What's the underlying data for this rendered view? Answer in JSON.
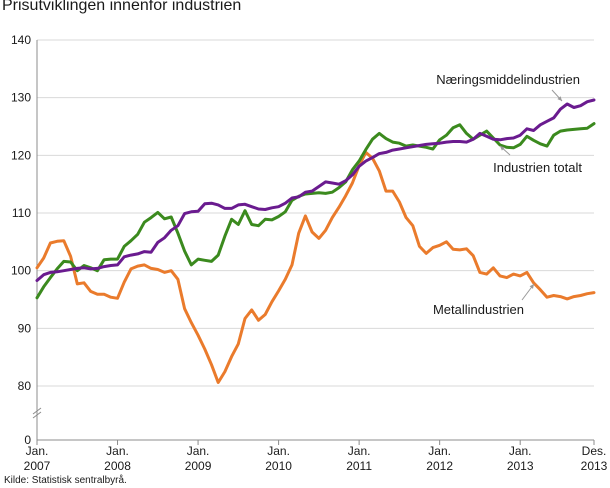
{
  "title": "Prisutviklingen innenfor industrien",
  "source": "Kilde: Statistisk sentralbyrå.",
  "colors": {
    "industrien_totalt": "#3b8a1e",
    "naeringsmiddel": "#6a1b8f",
    "metall": "#ea7b2c",
    "grid": "#d9d9d9",
    "axis": "#8c8c8c"
  },
  "chart_data": {
    "type": "line",
    "title": "Prisutviklingen innenfor industrien",
    "xlabel": "",
    "ylabel": "",
    "ylim": [
      0,
      140
    ],
    "y_axis_break": [
      0,
      80
    ],
    "yticks": [
      0,
      80,
      90,
      100,
      110,
      120,
      130,
      140
    ],
    "x_range": [
      0,
      83
    ],
    "x_ticks": [
      {
        "x": 0,
        "line1": "Jan.",
        "line2": "2007"
      },
      {
        "x": 12,
        "line1": "Jan.",
        "line2": "2008"
      },
      {
        "x": 24,
        "line1": "Jan.",
        "line2": "2009"
      },
      {
        "x": 36,
        "line1": "Jan.",
        "line2": "2010"
      },
      {
        "x": 48,
        "line1": "Jan.",
        "line2": "2011"
      },
      {
        "x": 60,
        "line1": "Jan.",
        "line2": "2012"
      },
      {
        "x": 72,
        "line1": "Jan.",
        "line2": "2013"
      },
      {
        "x": 83,
        "line1": "Des.",
        "line2": "2013"
      }
    ],
    "series": [
      {
        "name": "Industrien totalt",
        "color_key": "industrien_totalt",
        "values": [
          95.3,
          97.2,
          98.8,
          100.3,
          101.6,
          101.5,
          100,
          100.9,
          100.5,
          100,
          101.9,
          102,
          102,
          104.2,
          105.2,
          106.3,
          108.4,
          109.2,
          110.1,
          109,
          109.3,
          106.5,
          103.4,
          101,
          102,
          101.8,
          101.6,
          102.7,
          106,
          108.9,
          108,
          110.4,
          108,
          107.8,
          108.9,
          108.8,
          109.4,
          110.2,
          112.2,
          112.9,
          113.3,
          113.4,
          113.5,
          113.4,
          113.6,
          114.4,
          115.4,
          117.5,
          119,
          121,
          122.8,
          123.8,
          122.9,
          122.3,
          122.1,
          121.6,
          121.8,
          121.6,
          121.4,
          121.1,
          122.7,
          123.5,
          124.8,
          125.3,
          123.8,
          122.8,
          123.5,
          124.2,
          123,
          121.8,
          121.4,
          121.3,
          121.9,
          123.3,
          122.6,
          122,
          121.6,
          123.5,
          124.2,
          124.4,
          124.5,
          124.6,
          124.7,
          125.5
        ]
      },
      {
        "name": "Næringsmiddelindustrien",
        "color_key": "naeringsmiddel",
        "values": [
          98.3,
          99.3,
          99.7,
          99.8,
          100,
          100.2,
          100.4,
          100.5,
          100.3,
          100.4,
          100.7,
          100.9,
          101,
          102.4,
          102.7,
          102.9,
          103.3,
          103.2,
          104.9,
          105.7,
          107,
          107.8,
          109.9,
          110.2,
          110.3,
          111.6,
          111.7,
          111.4,
          110.8,
          110.8,
          111.4,
          111.5,
          111.1,
          110.7,
          110.6,
          110.9,
          111.1,
          111.7,
          112.6,
          112.8,
          113.6,
          113.8,
          114.6,
          115.4,
          115.2,
          115,
          115.6,
          116.6,
          118.1,
          119,
          119.6,
          120.3,
          120.5,
          120.9,
          121.1,
          121.3,
          121.5,
          121.7,
          121.9,
          122,
          122.1,
          122.3,
          122.4,
          122.4,
          122.3,
          122.8,
          123.8,
          123.3,
          122.8,
          122.7,
          122.9,
          123,
          123.5,
          124.6,
          124.3,
          125.3,
          125.9,
          126.5,
          128,
          128.9,
          128.3,
          128.6,
          129.3,
          129.6
        ]
      },
      {
        "name": "Metallindustrien",
        "color_key": "metall",
        "values": [
          100.5,
          102.2,
          104.8,
          105.1,
          105.2,
          102.5,
          97.7,
          97.9,
          96.4,
          95.9,
          95.9,
          95.4,
          95.2,
          98,
          100.3,
          100.8,
          101,
          100.4,
          100.2,
          99.7,
          100,
          98.5,
          93.4,
          91,
          88.8,
          86.4,
          83.7,
          80.6,
          82.5,
          85.1,
          87.3,
          91.7,
          93.2,
          91.4,
          92.4,
          94.6,
          96.5,
          98.5,
          101,
          106.5,
          109.5,
          106.7,
          105.6,
          107,
          109.2,
          111,
          113,
          115.2,
          118.2,
          120.5,
          119.5,
          117.3,
          113.8,
          113.8,
          111.9,
          109.2,
          107.8,
          104.2,
          103,
          104,
          104.4,
          105,
          103.7,
          103.6,
          103.8,
          102.6,
          99.7,
          99.4,
          100.5,
          99.1,
          98.8,
          99.4,
          99.1,
          99.7,
          97.9,
          96.7,
          95.4,
          95.7,
          95.5,
          95.1,
          95.5,
          95.7,
          96,
          96.2
        ]
      }
    ],
    "annotations": [
      {
        "text": "Næringsmiddelindustrien",
        "points_to": "Næringsmiddelindustrien"
      },
      {
        "text": "Industrien totalt",
        "points_to": "Industrien totalt"
      },
      {
        "text": "Metallindustrien",
        "points_to": "Metallindustrien"
      }
    ]
  }
}
